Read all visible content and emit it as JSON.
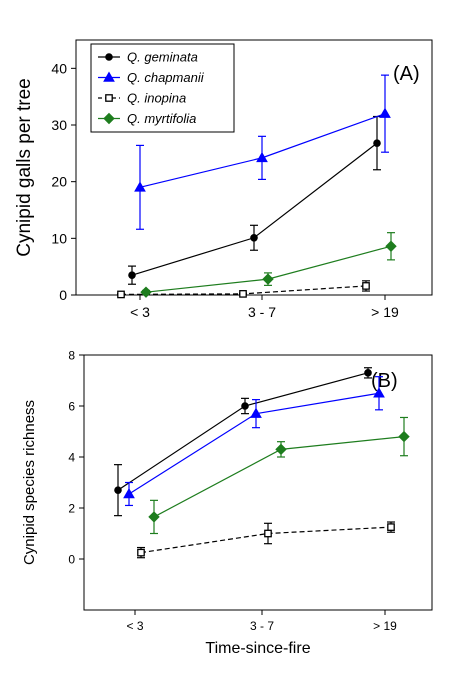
{
  "chart_data": [
    {
      "type": "line",
      "panel_label": "(A)",
      "title": "",
      "xlabel": "",
      "ylabel": "Cynipid galls per tree",
      "categories": [
        "< 3",
        "3 - 7",
        "> 19"
      ],
      "ylim": [
        0,
        45
      ],
      "yticks": [
        0,
        10,
        20,
        30,
        40
      ],
      "grid": false,
      "legend_position": "top-left",
      "series": [
        {
          "name": "Q. geminata",
          "color": "#000000",
          "marker": "circle-filled",
          "dash": "solid",
          "values": [
            3.5,
            10.1,
            26.8
          ],
          "errors": [
            1.6,
            2.2,
            4.7
          ]
        },
        {
          "name": "Q. chapmanii",
          "color": "#0000ff",
          "marker": "triangle-filled",
          "dash": "solid",
          "values": [
            19.0,
            24.2,
            32.0
          ],
          "errors": [
            7.4,
            3.8,
            6.8
          ]
        },
        {
          "name": "Q. inopina",
          "color": "#000000",
          "marker": "square-open",
          "dash": "dashed",
          "values": [
            0.1,
            0.2,
            1.6
          ],
          "errors": [
            0.1,
            0.1,
            0.9
          ]
        },
        {
          "name": "Q. myrtifolia",
          "color": "#1e7d1e",
          "marker": "diamond-filled",
          "dash": "solid",
          "values": [
            0.5,
            2.8,
            8.6
          ],
          "errors": [
            0.3,
            1.1,
            2.4
          ]
        }
      ]
    },
    {
      "type": "line",
      "panel_label": "(B)",
      "title": "",
      "xlabel": "Time-since-fire",
      "ylabel": "Cynipid species richness",
      "categories": [
        "< 3",
        "3 - 7",
        "> 19"
      ],
      "ylim": [
        -2,
        8
      ],
      "yticks": [
        0,
        2,
        4,
        6,
        8
      ],
      "grid": false,
      "series": [
        {
          "name": "Q. geminata",
          "color": "#000000",
          "marker": "circle-filled",
          "dash": "solid",
          "values": [
            2.7,
            6.0,
            7.3
          ],
          "errors": [
            1.0,
            0.3,
            0.2
          ]
        },
        {
          "name": "Q. chapmanii",
          "color": "#0000ff",
          "marker": "triangle-filled",
          "dash": "solid",
          "values": [
            2.55,
            5.7,
            6.5
          ],
          "errors": [
            0.45,
            0.55,
            0.65
          ]
        },
        {
          "name": "Q. inopina",
          "color": "#000000",
          "marker": "square-open",
          "dash": "dashed",
          "values": [
            0.25,
            1.0,
            1.25
          ],
          "errors": [
            0.2,
            0.4,
            0.2
          ]
        },
        {
          "name": "Q. myrtifolia",
          "color": "#1e7d1e",
          "marker": "diamond-filled",
          "dash": "solid",
          "values": [
            1.65,
            4.3,
            4.8
          ],
          "errors": [
            0.65,
            0.3,
            0.75
          ]
        }
      ]
    }
  ]
}
